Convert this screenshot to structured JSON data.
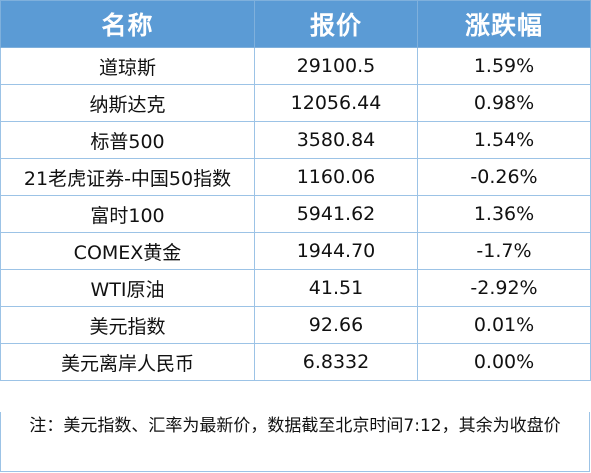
{
  "table": {
    "headers": [
      "名称",
      "报价",
      "涨跌幅"
    ],
    "rows": [
      {
        "name": "道琼斯",
        "price": "29100.5",
        "change": "1.59%"
      },
      {
        "name": "纳斯达克",
        "price": "12056.44",
        "change": "0.98%"
      },
      {
        "name": "标普500",
        "price": "3580.84",
        "change": "1.54%"
      },
      {
        "name": "21老虎证券-中国50指数",
        "price": "1160.06",
        "change": "-0.26%"
      },
      {
        "name": "富时100",
        "price": "5941.62",
        "change": "1.36%"
      },
      {
        "name": "COMEX黄金",
        "price": "1944.70",
        "change": "-1.7%"
      },
      {
        "name": "WTI原油",
        "price": "41.51",
        "change": "-2.92%"
      },
      {
        "name": "美元指数",
        "price": "92.66",
        "change": "0.01%"
      },
      {
        "name": "美元离岸人民币",
        "price": "6.8332",
        "change": "0.00%"
      }
    ]
  },
  "note": "注：美元指数、汇率为最新价，数据截至北京时间7:12，其余为收盘价",
  "colors": {
    "header_bg": "#5b9bd5",
    "header_text": "#ffffff",
    "border": "#9cc3e6"
  }
}
